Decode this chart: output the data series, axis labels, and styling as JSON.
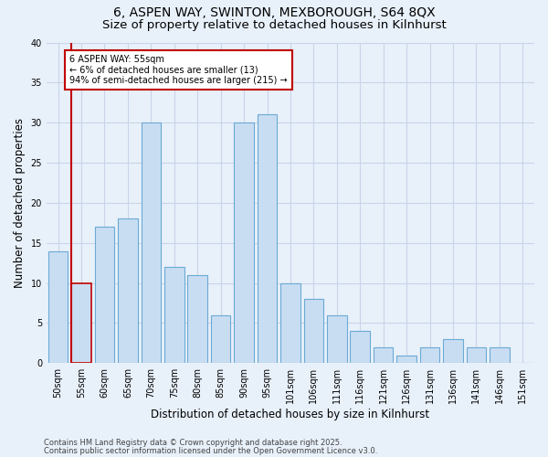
{
  "title1": "6, ASPEN WAY, SWINTON, MEXBOROUGH, S64 8QX",
  "title2": "Size of property relative to detached houses in Kilnhurst",
  "xlabel": "Distribution of detached houses by size in Kilnhurst",
  "ylabel": "Number of detached properties",
  "categories": [
    "50sqm",
    "55sqm",
    "60sqm",
    "65sqm",
    "70sqm",
    "75sqm",
    "80sqm",
    "85sqm",
    "90sqm",
    "95sqm",
    "101sqm",
    "106sqm",
    "111sqm",
    "116sqm",
    "121sqm",
    "126sqm",
    "131sqm",
    "136sqm",
    "141sqm",
    "146sqm",
    "151sqm"
  ],
  "values": [
    14,
    10,
    17,
    18,
    30,
    12,
    11,
    6,
    30,
    31,
    10,
    8,
    6,
    4,
    2,
    1,
    2,
    3,
    2,
    2,
    0
  ],
  "bar_color": "#c9ddf2",
  "bar_edge_color": "#6aaad4",
  "highlight_bar_index": 1,
  "vline_color": "#c00000",
  "ylim": [
    0,
    40
  ],
  "yticks": [
    0,
    5,
    10,
    15,
    20,
    25,
    30,
    35,
    40
  ],
  "annotation_title": "6 ASPEN WAY: 55sqm",
  "annotation_line1": "← 6% of detached houses are smaller (13)",
  "annotation_line2": "94% of semi-detached houses are larger (215) →",
  "annotation_box_color": "#ffffff",
  "annotation_box_edge": "#c00000",
  "footer1": "Contains HM Land Registry data © Crown copyright and database right 2025.",
  "footer2": "Contains public sector information licensed under the Open Government Licence v3.0.",
  "bg_color": "#e8f0fa",
  "grid_color": "#c8d4e8",
  "title_fontsize": 10,
  "subtitle_fontsize": 9.5,
  "axis_label_fontsize": 8.5,
  "tick_fontsize": 7,
  "annotation_fontsize": 7,
  "footer_fontsize": 6
}
